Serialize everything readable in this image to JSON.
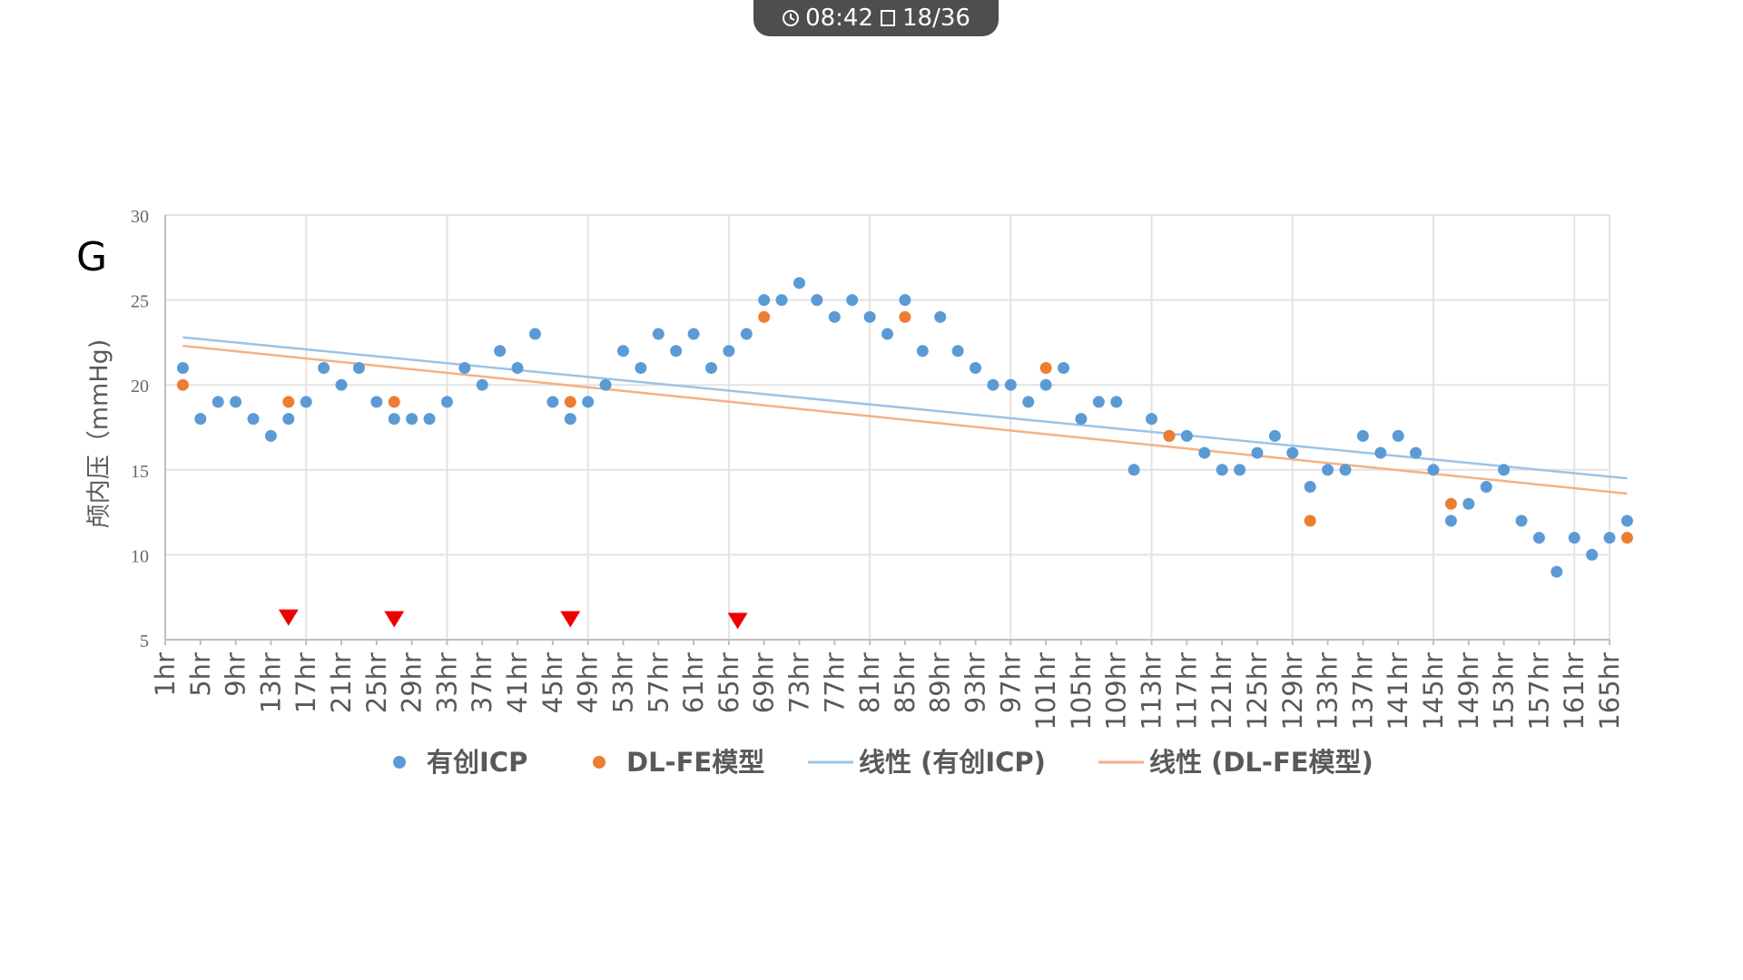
{
  "top_bar": {
    "time": "08:42",
    "page_counter": "18/36"
  },
  "chart_data": {
    "type": "scatter",
    "panel_label": "G",
    "title": "",
    "xlabel": "",
    "ylabel": "颅内压（mmHg)",
    "ylim": [
      5,
      30
    ],
    "yticks": [
      "5",
      "10",
      "15",
      "20",
      "25",
      "30"
    ],
    "x_tick_labels": [
      "1hr",
      "5hr",
      "9hr",
      "13hr",
      "17hr",
      "21hr",
      "25hr",
      "29hr",
      "33hr",
      "37hr",
      "41hr",
      "45hr",
      "49hr",
      "53hr",
      "57hr",
      "61hr",
      "65hr",
      "69hr",
      "73hr",
      "77hr",
      "81hr",
      "85hr",
      "89hr",
      "93hr",
      "97hr",
      "101hr",
      "105hr",
      "109hr",
      "113hr",
      "117hr",
      "121hr",
      "125hr",
      "129hr",
      "133hr",
      "137hr",
      "141hr",
      "145hr",
      "149hr",
      "153hr",
      "157hr",
      "161hr",
      "165hr"
    ],
    "grid": true,
    "legend_position": "bottom",
    "colors": {
      "icp": "#5b9bd5",
      "dl": "#ed7d31",
      "icp_trend": "#9dc3e6",
      "dl_trend": "#f4b183",
      "marker": "#ee0000"
    },
    "series": [
      {
        "name": "有创ICP",
        "kind": "scatter",
        "points": [
          [
            3,
            21
          ],
          [
            5,
            18
          ],
          [
            7,
            19
          ],
          [
            9,
            19
          ],
          [
            11,
            18
          ],
          [
            13,
            17
          ],
          [
            15,
            18
          ],
          [
            17,
            19
          ],
          [
            19,
            21
          ],
          [
            21,
            20
          ],
          [
            23,
            21
          ],
          [
            25,
            19
          ],
          [
            27,
            18
          ],
          [
            29,
            18
          ],
          [
            31,
            18
          ],
          [
            33,
            19
          ],
          [
            35,
            21
          ],
          [
            37,
            20
          ],
          [
            39,
            22
          ],
          [
            41,
            21
          ],
          [
            43,
            23
          ],
          [
            45,
            19
          ],
          [
            47,
            18
          ],
          [
            49,
            19
          ],
          [
            51,
            20
          ],
          [
            53,
            22
          ],
          [
            55,
            21
          ],
          [
            57,
            23
          ],
          [
            59,
            22
          ],
          [
            61,
            23
          ],
          [
            63,
            21
          ],
          [
            65,
            22
          ],
          [
            67,
            23
          ],
          [
            69,
            25
          ],
          [
            71,
            25
          ],
          [
            73,
            26
          ],
          [
            75,
            25
          ],
          [
            77,
            24
          ],
          [
            79,
            25
          ],
          [
            81,
            24
          ],
          [
            83,
            23
          ],
          [
            85,
            25
          ],
          [
            87,
            22
          ],
          [
            89,
            24
          ],
          [
            91,
            22
          ],
          [
            93,
            21
          ],
          [
            95,
            20
          ],
          [
            97,
            20
          ],
          [
            99,
            19
          ],
          [
            101,
            20
          ],
          [
            103,
            21
          ],
          [
            105,
            18
          ],
          [
            107,
            19
          ],
          [
            109,
            19
          ],
          [
            111,
            15
          ],
          [
            113,
            18
          ],
          [
            115,
            17
          ],
          [
            117,
            17
          ],
          [
            119,
            16
          ],
          [
            121,
            15
          ],
          [
            123,
            15
          ],
          [
            125,
            16
          ],
          [
            127,
            17
          ],
          [
            129,
            16
          ],
          [
            131,
            14
          ],
          [
            133,
            15
          ],
          [
            135,
            15
          ],
          [
            137,
            17
          ],
          [
            139,
            16
          ],
          [
            141,
            17
          ],
          [
            143,
            16
          ],
          [
            145,
            15
          ],
          [
            147,
            12
          ],
          [
            149,
            13
          ],
          [
            151,
            14
          ],
          [
            153,
            15
          ],
          [
            155,
            12
          ],
          [
            157,
            11
          ],
          [
            159,
            9
          ],
          [
            161,
            11
          ],
          [
            163,
            10
          ],
          [
            165,
            11
          ],
          [
            167,
            12
          ]
        ]
      },
      {
        "name": "DL-FE模型",
        "kind": "scatter",
        "points": [
          [
            3,
            20
          ],
          [
            15,
            19
          ],
          [
            27,
            19
          ],
          [
            47,
            19
          ],
          [
            69,
            24
          ],
          [
            85,
            24
          ],
          [
            101,
            21
          ],
          [
            115,
            17
          ],
          [
            131,
            12
          ],
          [
            147,
            13
          ],
          [
            167,
            11
          ]
        ]
      },
      {
        "name": "线性 (有创ICP)",
        "kind": "trendline",
        "points": [
          [
            3,
            22.8
          ],
          [
            167,
            14.5
          ]
        ]
      },
      {
        "name": "线性 (DL-FE模型)",
        "kind": "trendline",
        "points": [
          [
            3,
            22.3
          ],
          [
            167,
            13.6
          ]
        ]
      }
    ],
    "event_markers": [
      [
        15,
        6.3
      ],
      [
        27,
        6.2
      ],
      [
        47,
        6.2
      ],
      [
        66,
        6.1
      ]
    ]
  }
}
